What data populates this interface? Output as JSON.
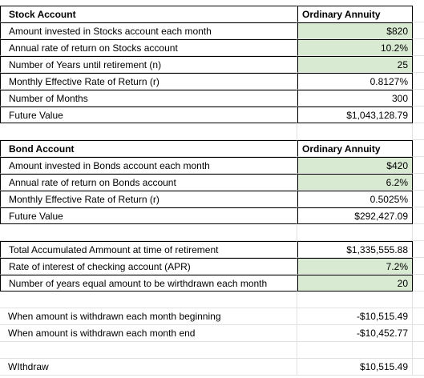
{
  "stock": {
    "title": "Stock Account",
    "col_header": "Ordinary Annuity",
    "rows": [
      {
        "label": "Amount invested in Stocks account each month",
        "value": "$820"
      },
      {
        "label": "Annual rate of return on Stocks account",
        "value": "10.2%"
      },
      {
        "label": "Number of Years until retirement (n)",
        "value": "25"
      },
      {
        "label": "Monthly Effective Rate of Return (r)",
        "value": "0.8127%"
      },
      {
        "label": "Number of Months",
        "value": "300"
      },
      {
        "label": "Future Value",
        "value": "$1,043,128.79"
      }
    ]
  },
  "bond": {
    "title": "Bond Account",
    "col_header": "Ordinary Annuity",
    "rows": [
      {
        "label": "Amount invested in Bonds account each month",
        "value": "$420"
      },
      {
        "label": "Annual rate of return on Bonds account",
        "value": "6.2%"
      },
      {
        "label": "Monthly Effective Rate of Return (r)",
        "value": "0.5025%"
      },
      {
        "label": "Future Value",
        "value": "$292,427.09"
      }
    ]
  },
  "retirement": {
    "rows": [
      {
        "label": "Total Accumulated Ammount at time of retirement",
        "value": "$1,335,555.88"
      },
      {
        "label": "Rate of interest of checking account (APR)",
        "value": "7.2%"
      },
      {
        "label": "Number of years equal amount to be wirthdrawn each month",
        "value": "20"
      }
    ]
  },
  "withdrawals": {
    "rows": [
      {
        "label": "When amount is withdrawn each month beginning",
        "value": "-$10,515.49"
      },
      {
        "label": "When amount is withdrawn each month end",
        "value": "-$10,452.77"
      }
    ]
  },
  "withdraw": {
    "label": "WIthdraw",
    "value": "$10,515.49"
  },
  "colors": {
    "input_fill": "#d9ead3",
    "gridline": "#e2e2e2",
    "border": "#000000"
  }
}
